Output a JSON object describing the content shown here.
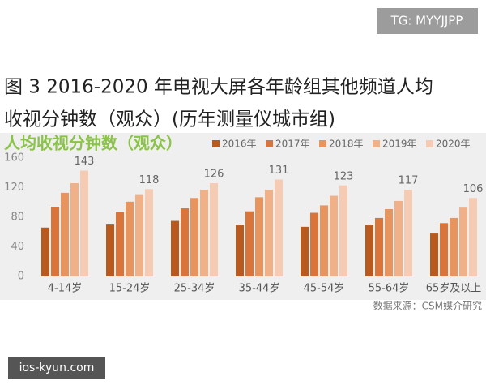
{
  "watermark_top": "TG: MYYJJPP",
  "watermark_bottom": "ios-kyun.com",
  "chart_data": {
    "type": "bar",
    "title": [
      "图 3 2016-2020 年电视大屏各年龄组其他频道人均",
      "收视分钟数（观众）(历年测量仪城市组)"
    ],
    "subtitle": "人均收视分钟数（观众）",
    "source": "数据来源：CSM媒介研究",
    "categories": [
      "4-14岁",
      "15-24岁",
      "25-34岁",
      "35-44岁",
      "45-54岁",
      "55-64岁",
      "65岁及以上"
    ],
    "series": [
      {
        "name": "2016年",
        "color": "#b85a1e",
        "values": [
          66,
          70,
          75,
          69,
          67,
          69,
          58
        ]
      },
      {
        "name": "2017年",
        "color": "#d9753a",
        "values": [
          94,
          87,
          92,
          88,
          86,
          79,
          72
        ]
      },
      {
        "name": "2018年",
        "color": "#e8945e",
        "values": [
          113,
          101,
          106,
          107,
          96,
          91,
          79
        ]
      },
      {
        "name": "2019年",
        "color": "#f0b088",
        "values": [
          126,
          110,
          117,
          117,
          109,
          102,
          93
        ]
      },
      {
        "name": "2020年",
        "color": "#f5cbb3",
        "values": [
          143,
          118,
          126,
          131,
          123,
          117,
          106
        ]
      }
    ],
    "labeled_series": 4,
    "ylim": [
      0,
      160
    ],
    "yticks": [
      0,
      40,
      80,
      120,
      160
    ],
    "grid": false
  }
}
